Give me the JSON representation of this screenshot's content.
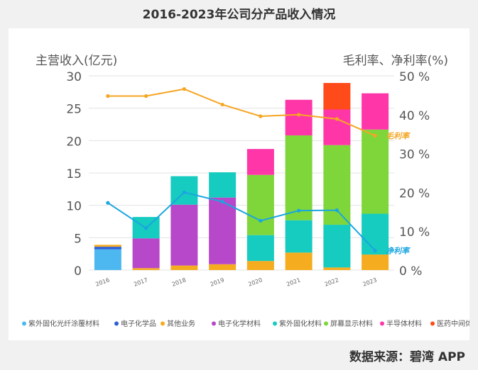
{
  "title": "2016-2023年公司分产品收入情况",
  "source": "数据来源：碧湾 APP",
  "colors": {
    "紫外固化光纤涂覆材料": "#4db8f0",
    "电子化学品": "#2e5fd6",
    "其他业务": "#f5ac1f",
    "电子化学材料": "#b748c9",
    "紫外固化材料": "#16cbbf",
    "屏幕显示材料": "#7fd63a",
    "半导体材料": "#ff36a8",
    "医药中间体": "#ff4a1a",
    "gross_line": "#f5a623",
    "net_line": "#1aa6e0"
  },
  "chart_data": {
    "type": "bar",
    "stacked": true,
    "categories": [
      "2016",
      "2017",
      "2018",
      "2019",
      "2020",
      "2021",
      "2022",
      "2023"
    ],
    "ylabel": "主营收入(亿元)",
    "y2label": "毛利率、净利率(%)",
    "ylim": [
      0,
      30
    ],
    "yticks": [
      0,
      5,
      10,
      15,
      20,
      25,
      30
    ],
    "y2lim": [
      0,
      50
    ],
    "y2ticks": [
      "0 %",
      "10 %",
      "20 %",
      "30 %",
      "40 %",
      "50 %"
    ],
    "legend_position": "bottom",
    "series": [
      {
        "name": "紫外固化光纤涂覆材料",
        "values": [
          3.2,
          0,
          0,
          0,
          0,
          0,
          0,
          0
        ]
      },
      {
        "name": "电子化学品",
        "values": [
          0.4,
          0,
          0,
          0,
          0,
          0,
          0,
          0
        ]
      },
      {
        "name": "其他业务",
        "values": [
          0.3,
          0.3,
          0.7,
          0.9,
          1.4,
          2.7,
          0.4,
          2.4
        ]
      },
      {
        "name": "电子化学材料",
        "values": [
          0,
          4.6,
          9.4,
          10.3,
          0,
          0,
          0,
          0
        ]
      },
      {
        "name": "紫外固化材料",
        "values": [
          0,
          3.3,
          4.4,
          3.9,
          4.0,
          5.0,
          6.6,
          6.3
        ]
      },
      {
        "name": "屏幕显示材料",
        "values": [
          0,
          0,
          0,
          0,
          9.3,
          13.1,
          12.3,
          13.0
        ]
      },
      {
        "name": "半导体材料",
        "values": [
          0,
          0,
          0,
          0,
          4.0,
          5.5,
          5.5,
          5.6
        ]
      },
      {
        "name": "医药中间体",
        "values": [
          0,
          0,
          0,
          0,
          0,
          0,
          4.1,
          0
        ]
      }
    ],
    "lines": [
      {
        "name": "毛利率",
        "axis": "right",
        "values": [
          44.8,
          44.8,
          46.6,
          42.6,
          39.6,
          40.0,
          38.9,
          34.6
        ]
      },
      {
        "name": "净利率",
        "axis": "right",
        "values": [
          17.3,
          10.8,
          20.0,
          17.6,
          12.7,
          15.3,
          15.4,
          5.0
        ]
      }
    ]
  }
}
